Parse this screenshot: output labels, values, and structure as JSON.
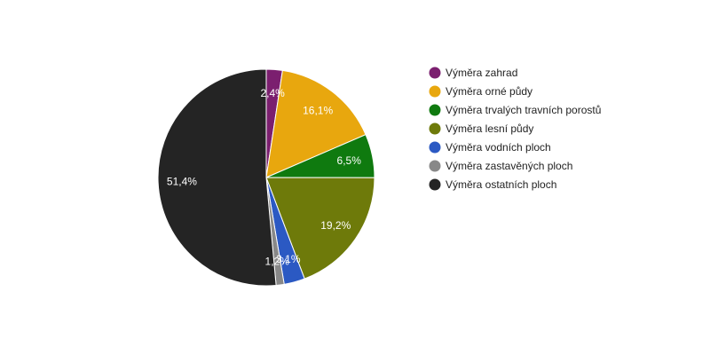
{
  "chart_data": {
    "type": "pie",
    "title": "",
    "legend_position": "right",
    "slices": [
      {
        "name": "Výměra zahrad",
        "value": 2.4,
        "label": "2,4%",
        "color": "#7b1f6f"
      },
      {
        "name": "Výměra orné půdy",
        "value": 16.1,
        "label": "16,1%",
        "color": "#e8a70e"
      },
      {
        "name": "Výměra trvalých travních porostů",
        "value": 6.5,
        "label": "6,5%",
        "color": "#0f7a0f"
      },
      {
        "name": "Výměra lesní půdy",
        "value": 19.2,
        "label": "19,2%",
        "color": "#6e7a0a"
      },
      {
        "name": "Výměra vodních ploch",
        "value": 3.1,
        "label": "3,1%",
        "color": "#2b59c3"
      },
      {
        "name": "Výměra zastavěných ploch",
        "value": 1.2,
        "label": "1,2%",
        "color": "#888888"
      },
      {
        "name": "Výměra ostatních ploch",
        "value": 51.4,
        "label": "51,4%",
        "color": "#242424"
      }
    ]
  }
}
